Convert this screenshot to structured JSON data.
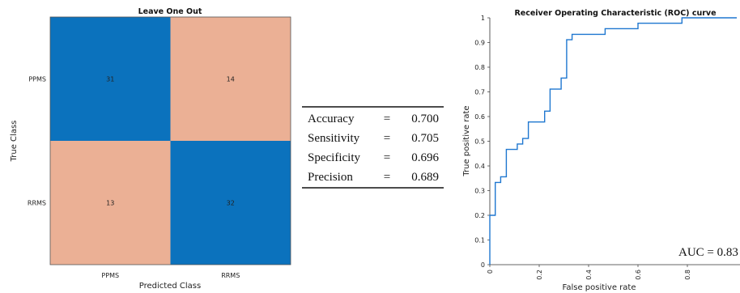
{
  "chart_data": [
    {
      "type": "heatmap",
      "title": "Leave One Out",
      "xlabel": "Predicted Class",
      "ylabel": "True Class",
      "x_categories": [
        "PPMS",
        "RRMS"
      ],
      "y_categories": [
        "PPMS",
        "RRMS"
      ],
      "values": [
        [
          31,
          14
        ],
        [
          13,
          32
        ]
      ],
      "colors": {
        "correct": "#0b72bd",
        "incorrect": "#ebb095"
      }
    },
    {
      "type": "table",
      "rows": [
        {
          "metric": "Accuracy",
          "eq": "=",
          "value": "0.700"
        },
        {
          "metric": "Sensitivity",
          "eq": "=",
          "value": "0.705"
        },
        {
          "metric": "Specificity",
          "eq": "=",
          "value": "0.696"
        },
        {
          "metric": "Precision",
          "eq": "=",
          "value": "0.689"
        }
      ]
    },
    {
      "type": "line",
      "title": "Receiver Operating Characteristic (ROC) curve",
      "xlabel": "False positive rate",
      "ylabel": "True positive rate",
      "xlim": [
        0,
        1
      ],
      "ylim": [
        0,
        1
      ],
      "x_ticks": [
        "0",
        "0.2",
        "0.4",
        "0.6",
        "0.8"
      ],
      "y_ticks": [
        "0",
        "0.1",
        "0.2",
        "0.3",
        "0.4",
        "0.5",
        "0.6",
        "0.7",
        "0.8",
        "0.9",
        "1"
      ],
      "annotation": "AUC = 0.83",
      "line_color": "#1f77d0",
      "x": [
        0,
        0,
        0.022,
        0.022,
        0.044,
        0.044,
        0.067,
        0.067,
        0.111,
        0.111,
        0.133,
        0.133,
        0.156,
        0.156,
        0.222,
        0.222,
        0.244,
        0.244,
        0.289,
        0.289,
        0.311,
        0.311,
        0.333,
        0.333,
        0.467,
        0.467,
        0.6,
        0.6,
        0.778,
        0.778,
        1.0
      ],
      "y": [
        0,
        0.2,
        0.2,
        0.333,
        0.333,
        0.356,
        0.356,
        0.467,
        0.467,
        0.489,
        0.489,
        0.511,
        0.511,
        0.578,
        0.578,
        0.622,
        0.622,
        0.711,
        0.711,
        0.756,
        0.756,
        0.911,
        0.911,
        0.933,
        0.933,
        0.956,
        0.956,
        0.978,
        0.978,
        1.0,
        1.0
      ]
    }
  ]
}
